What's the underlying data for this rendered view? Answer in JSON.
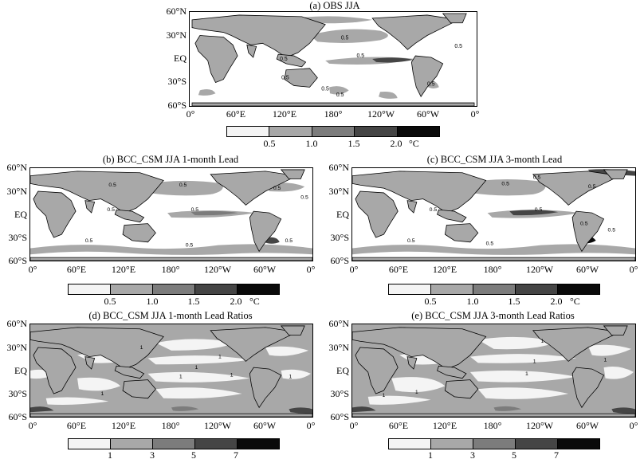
{
  "panels": {
    "a": {
      "title": "(a)  OBS JJA"
    },
    "b": {
      "title": "(b)  BCC_CSM JJA 1-month Lead"
    },
    "c": {
      "title": "(c)  BCC_CSM JJA 3-month Lead"
    },
    "d": {
      "title": "(d)  BCC_CSM JJA 1-month Lead Ratios"
    },
    "e": {
      "title": "(e)  BCC_CSM JJA 3-month Lead Ratios"
    }
  },
  "lat_labels": [
    "60°N",
    "30°N",
    "EQ",
    "30°S",
    "60°S"
  ],
  "lon_labels_a": [
    "0°",
    "60°E",
    "120°E",
    "180°",
    "120°W",
    "60°W",
    "0°"
  ],
  "lon_labels_b": [
    "0°",
    "60°E",
    "120°E",
    "180°",
    "120°W",
    "60°W",
    "0°"
  ],
  "contour_labels": {
    "a": [
      "0.5",
      "0.5",
      "0.5",
      "0.5",
      "0.5",
      "0.5",
      "0.5",
      "0.5"
    ],
    "b": [
      "0.5",
      "0.5",
      "0.5",
      "0.5",
      "0.5",
      "0.5",
      "0.5",
      "0.5",
      "0.5"
    ],
    "c": [
      "0.5",
      "0.5",
      "0.5",
      "0.5",
      "0.5",
      "0.5",
      "0.5",
      "0.5",
      "0.5"
    ],
    "d": [
      "1",
      "1",
      "1",
      "1",
      "1",
      "1",
      "1"
    ],
    "e": [
      "1",
      "1",
      "1",
      "1",
      "1",
      "1"
    ]
  },
  "colorbar_temp": {
    "labels": [
      "0.5",
      "1.0",
      "1.5",
      "2.0"
    ],
    "unit": "°C",
    "colors": [
      "#f4f4f4",
      "#a8a8a8",
      "#7c7c7c",
      "#454545",
      "#0a0a0a"
    ]
  },
  "colorbar_ratio": {
    "labels": [
      "1",
      "3",
      "5",
      "7"
    ],
    "colors": [
      "#f4f4f4",
      "#a8a8a8",
      "#7c7c7c",
      "#454545",
      "#0a0a0a"
    ]
  }
}
